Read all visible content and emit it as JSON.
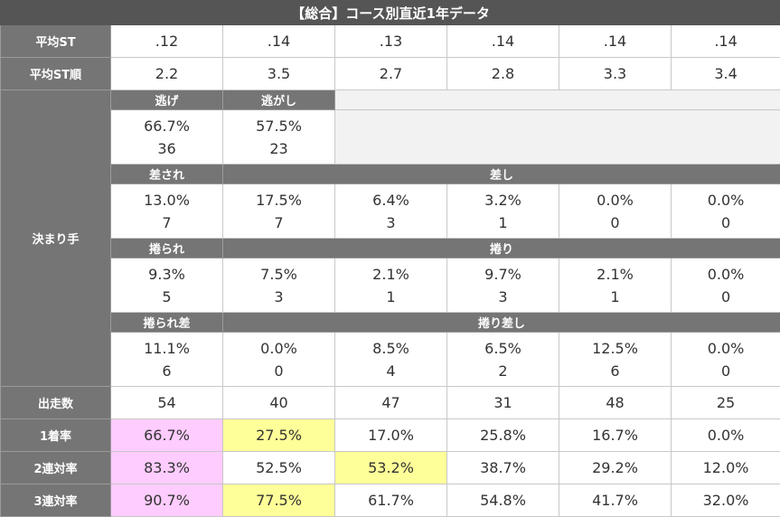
{
  "title": "【総合】コース別直近1年データ",
  "avg_st": {
    "label": "平均ST",
    "values": [
      ".12",
      ".14",
      ".13",
      ".14",
      ".14",
      ".14"
    ]
  },
  "avg_st_rank": {
    "label": "平均ST順",
    "values": [
      "2.2",
      "3.5",
      "2.7",
      "2.8",
      "3.3",
      "3.4"
    ]
  },
  "kimarite": {
    "label": "決まり手",
    "nige": {
      "label1": "逃げ",
      "label2": "逃がし",
      "rate1": "66.7%",
      "count1": "36",
      "rate2": "57.5%",
      "count2": "23"
    },
    "sashi": {
      "label1": "差され",
      "label2": "差し",
      "rates": [
        "13.0%",
        "17.5%",
        "6.4%",
        "3.2%",
        "0.0%",
        "0.0%"
      ],
      "counts": [
        "7",
        "7",
        "3",
        "1",
        "0",
        "0"
      ]
    },
    "makuri": {
      "label1": "捲られ",
      "label2": "捲り",
      "rates": [
        "9.3%",
        "7.5%",
        "2.1%",
        "9.7%",
        "2.1%",
        "0.0%"
      ],
      "counts": [
        "5",
        "3",
        "1",
        "3",
        "1",
        "0"
      ]
    },
    "makurizashi": {
      "label1": "捲られ差",
      "label2": "捲り差し",
      "rates": [
        "11.1%",
        "0.0%",
        "8.5%",
        "6.5%",
        "12.5%",
        "0.0%"
      ],
      "counts": [
        "6",
        "0",
        "4",
        "2",
        "6",
        "0"
      ]
    }
  },
  "starts": {
    "label": "出走数",
    "values": [
      "54",
      "40",
      "47",
      "31",
      "48",
      "25"
    ]
  },
  "win_rate": {
    "label": "1着率",
    "values": [
      "66.7%",
      "27.5%",
      "17.0%",
      "25.8%",
      "16.7%",
      "0.0%"
    ]
  },
  "quinella_rate": {
    "label": "2連対率",
    "values": [
      "83.3%",
      "52.5%",
      "53.2%",
      "38.7%",
      "29.2%",
      "12.0%"
    ]
  },
  "trio_rate": {
    "label": "3連対率",
    "values": [
      "90.7%",
      "77.5%",
      "61.7%",
      "54.8%",
      "41.7%",
      "32.0%"
    ]
  },
  "colors": {
    "highlight_pink": "#ffccff",
    "highlight_yellow": "#ffff99",
    "header_gray": "#757575",
    "title_gray": "#555555"
  }
}
